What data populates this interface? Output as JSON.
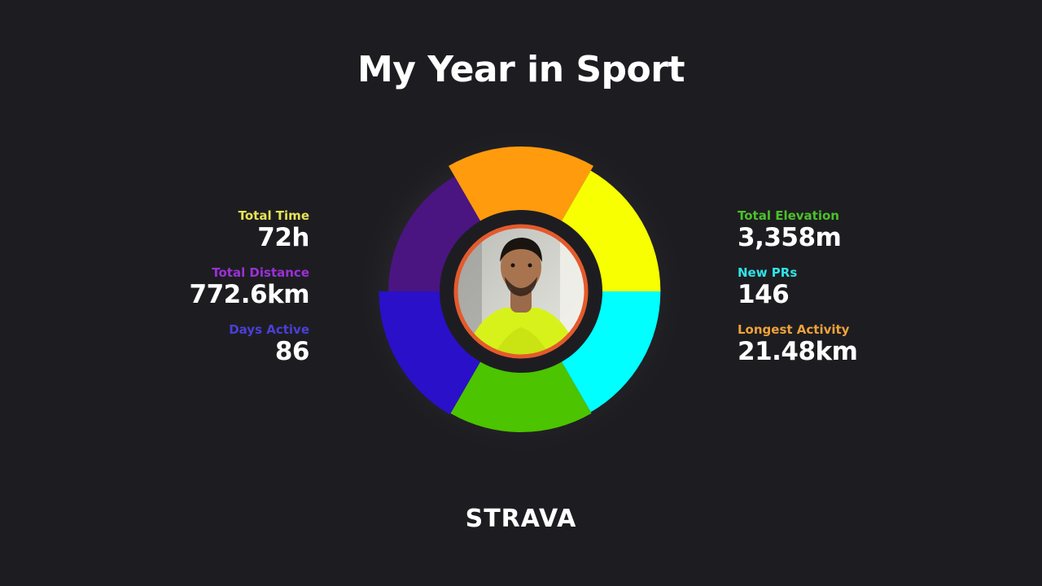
{
  "header": {
    "title": "My Year in Sport"
  },
  "stats_left": [
    {
      "label": "Total Time",
      "value": "72h",
      "color": "#e6e356"
    },
    {
      "label": "Total Distance",
      "value": "772.6km",
      "color": "#9b30d6"
    },
    {
      "label": "Days Active",
      "value": "86",
      "color": "#4a3fd8"
    }
  ],
  "stats_right": [
    {
      "label": "Total Elevation",
      "value": "3,358m",
      "color": "#4cc02a"
    },
    {
      "label": "New PRs",
      "value": "146",
      "color": "#2fe3e8"
    },
    {
      "label": "Longest Activity",
      "value": "21.48km",
      "color": "#f0a23a"
    }
  ],
  "ring": {
    "segments": [
      {
        "name": "orange",
        "color": "#ff9b0d",
        "level": 1.0
      },
      {
        "name": "yellow",
        "color": "#f7ff00",
        "level": 0.92
      },
      {
        "name": "cyan",
        "color": "#00ffff",
        "level": 0.92
      },
      {
        "name": "green",
        "color": "#4cc400",
        "level": 0.94
      },
      {
        "name": "blue",
        "color": "#2a10c8",
        "level": 0.96
      },
      {
        "name": "purple",
        "color": "#4a1580",
        "level": 0.82
      }
    ],
    "avatar_border_color": "#e45a2c"
  },
  "footer": {
    "brand": "STRAVA"
  }
}
